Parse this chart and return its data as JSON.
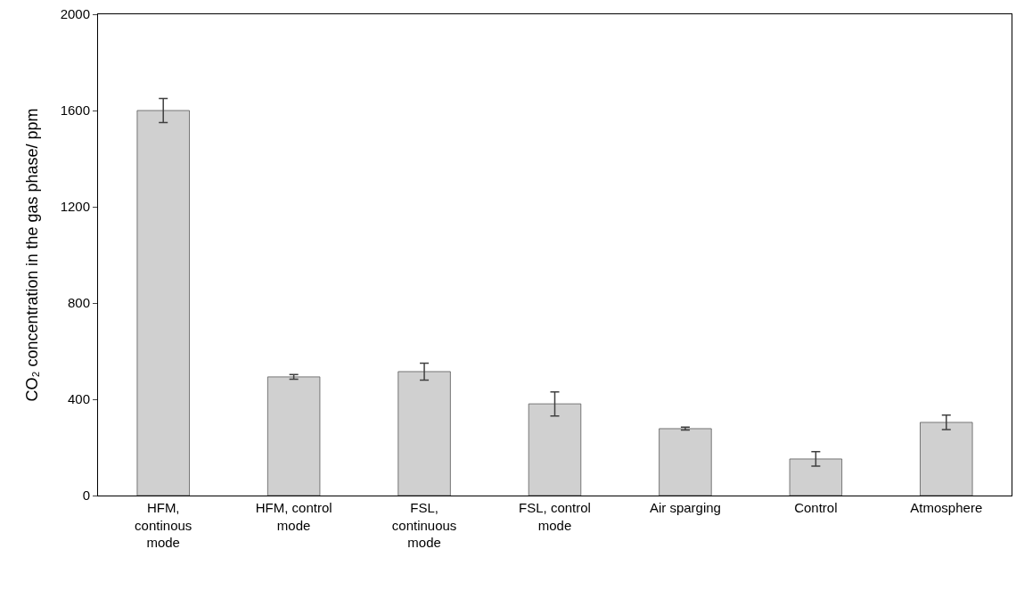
{
  "chart_data": {
    "type": "bar",
    "ylabel": "CO₂ concentration in the gas phase/ ppm",
    "categories": [
      "HFM, continous mode",
      "HFM, control mode",
      "FSL, continuous mode",
      "FSL, control mode",
      "Air sparging",
      "Control",
      "Atmosphere"
    ],
    "values": [
      1600,
      493,
      515,
      381,
      278,
      152,
      304
    ],
    "errors": [
      50,
      10,
      35,
      50,
      6,
      30,
      30
    ],
    "color": "#d0d0d0",
    "ylim": [
      0,
      2000
    ],
    "yticks": [
      0,
      400,
      800,
      1200,
      1600,
      2000
    ],
    "grid": false
  }
}
